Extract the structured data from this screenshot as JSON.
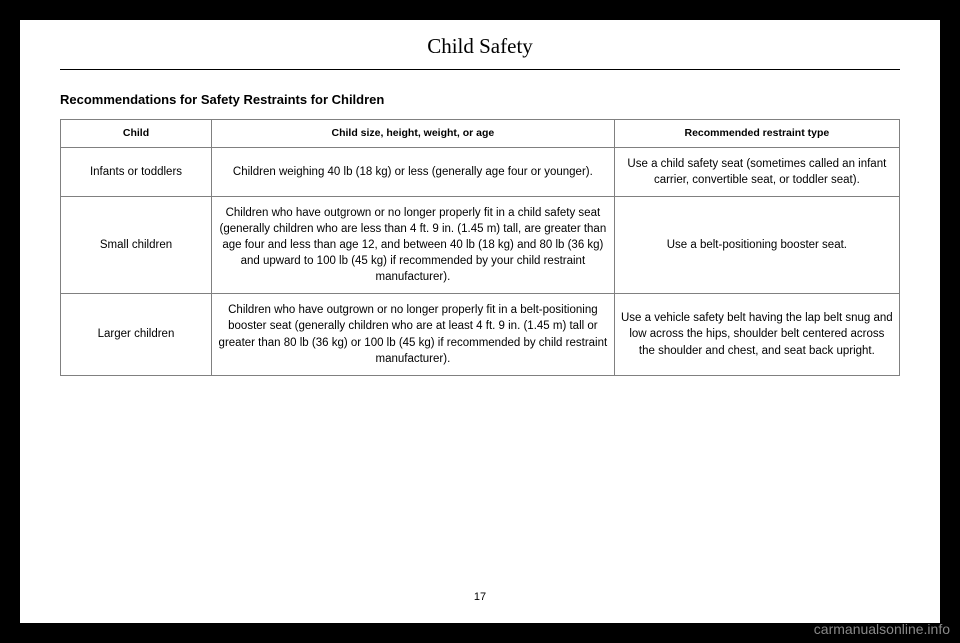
{
  "page_title": "Child Safety",
  "section_heading": "Recommendations for Safety Restraints for Children",
  "table": {
    "columns": [
      "Child",
      "Child size, height, weight, or age",
      "Recommended restraint type"
    ],
    "rows": [
      {
        "child": "Infants or toddlers",
        "size": "Children weighing 40 lb (18 kg) or less (generally age four or younger).",
        "type": "Use a child safety seat (sometimes called an infant carrier, convertible seat, or toddler seat)."
      },
      {
        "child": "Small children",
        "size": "Children who have outgrown or no longer properly fit in a child safety seat (generally children who are less than 4 ft. 9 in. (1.45 m) tall, are greater than age four and less than age 12, and between 40 lb (18 kg) and 80 lb (36 kg) and upward to 100 lb (45 kg) if recommended by your child restraint manufacturer).",
        "type": "Use a belt-positioning booster seat."
      },
      {
        "child": "Larger children",
        "size": "Children who have outgrown or no longer properly fit in a belt-positioning booster seat (generally children who are at least 4 ft. 9 in. (1.45 m) tall or greater than 80 lb (36 kg) or 100 lb (45 kg) if recommended by child restraint manufacturer).",
        "type": "Use a vehicle safety belt having the lap belt snug and low across the hips, shoulder belt centered across the shoulder and chest, and seat back upright."
      }
    ]
  },
  "page_number": "17",
  "watermark": "carmanualsonline.info"
}
